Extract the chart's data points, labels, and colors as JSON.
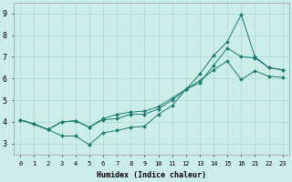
{
  "xlabel": "Humidex (Indice chaleur)",
  "bg_color": "#cceee8",
  "line_color": "#1a7a6e",
  "grid_color": "#aad8d0",
  "line1_x": [
    0,
    1,
    2,
    3,
    4,
    5,
    6,
    7,
    8,
    9,
    10,
    11,
    12,
    13,
    14,
    15,
    16,
    21,
    22,
    23
  ],
  "line1_y": [
    4.1,
    3.9,
    3.65,
    4.0,
    4.05,
    3.75,
    4.1,
    4.15,
    4.35,
    4.35,
    4.6,
    5.0,
    5.5,
    5.8,
    6.6,
    7.4,
    7.0,
    6.95,
    6.5,
    6.4
  ],
  "line2_x": [
    0,
    2,
    3,
    4,
    5,
    6,
    7,
    8,
    9,
    10,
    11,
    12,
    13,
    14,
    15,
    16,
    21,
    22,
    23
  ],
  "line2_y": [
    4.1,
    3.65,
    3.35,
    3.35,
    2.95,
    3.5,
    3.6,
    3.75,
    3.8,
    4.35,
    4.75,
    5.5,
    6.2,
    7.05,
    7.7,
    8.95,
    7.0,
    6.5,
    6.4
  ],
  "line3_x": [
    0,
    1,
    2,
    3,
    4,
    5,
    6,
    7,
    8,
    9,
    10,
    11,
    12,
    13,
    14,
    15,
    16,
    21,
    22,
    23
  ],
  "line3_y": [
    4.1,
    3.9,
    3.65,
    4.0,
    4.05,
    3.75,
    4.15,
    4.35,
    4.45,
    4.5,
    4.7,
    5.1,
    5.5,
    5.9,
    6.4,
    6.8,
    5.95,
    6.35,
    6.1,
    6.05
  ],
  "xtick_vals": [
    0,
    1,
    2,
    3,
    4,
    5,
    6,
    7,
    8,
    9,
    10,
    11,
    12,
    13,
    14,
    15,
    16,
    21,
    22,
    23
  ],
  "xtick_labels": [
    "0",
    "1",
    "2",
    "3",
    "4",
    "5",
    "6",
    "7",
    "8",
    "9",
    "10",
    "11",
    "12",
    "13",
    "14",
    "15",
    "16",
    "21",
    "22",
    "23"
  ],
  "yticks": [
    3,
    4,
    5,
    6,
    7,
    8,
    9
  ],
  "ylim": [
    2.5,
    9.5
  ]
}
